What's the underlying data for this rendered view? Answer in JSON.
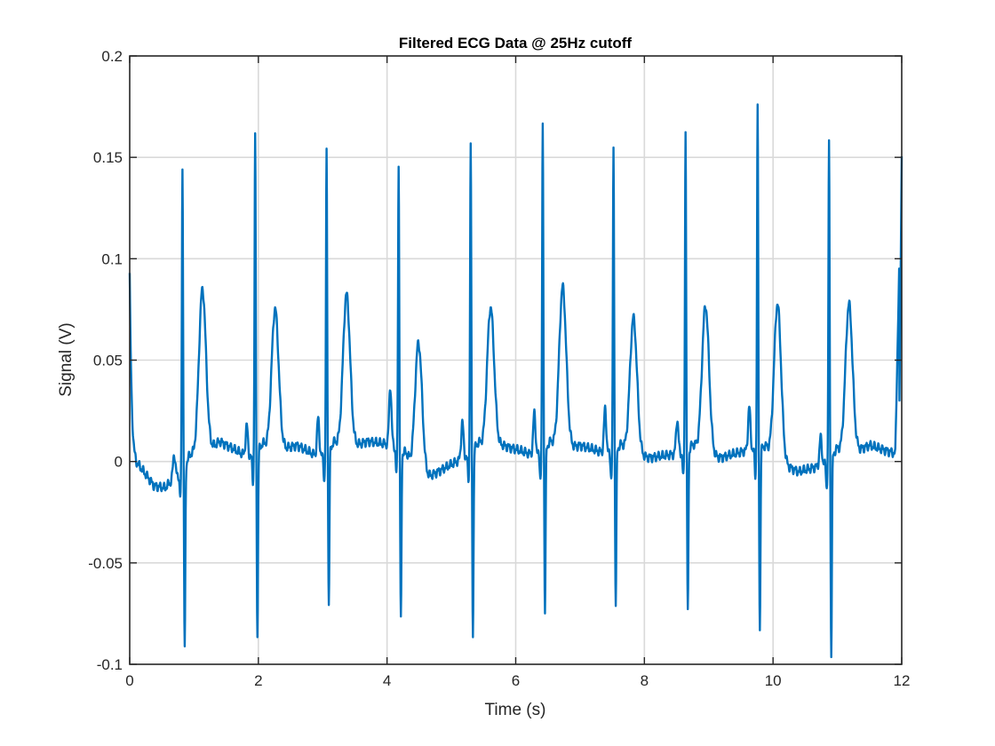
{
  "chart_data": {
    "type": "line",
    "title": "Filtered ECG Data @ 25Hz cutoff",
    "xlabel": "Time (s)",
    "ylabel": "Signal (V)",
    "xlim": [
      0,
      12
    ],
    "ylim": [
      -0.1,
      0.2
    ],
    "xticks": [
      0,
      2,
      4,
      6,
      8,
      10,
      12
    ],
    "xtick_labels": [
      "0",
      "2",
      "4",
      "6",
      "8",
      "10",
      "12"
    ],
    "yticks": [
      -0.1,
      -0.05,
      0,
      0.05,
      0.1,
      0.15,
      0.2
    ],
    "ytick_labels": [
      "-0.1",
      "-0.05",
      "0",
      "0.05",
      "0.1",
      "0.15",
      "0.2"
    ],
    "grid": true,
    "line_color": "#0072BD",
    "beats": [
      {
        "t": 0.82,
        "r": 0.161,
        "s": -0.085,
        "p": 0.016,
        "tw": 0.094
      },
      {
        "t": 1.95,
        "r": 0.168,
        "s": -0.085,
        "p": 0.019,
        "tw": 0.082
      },
      {
        "t": 3.06,
        "r": 0.159,
        "s": -0.07,
        "p": 0.023,
        "tw": 0.088
      },
      {
        "t": 4.18,
        "r": 0.152,
        "s": -0.078,
        "p": 0.033,
        "tw": 0.08
      },
      {
        "t": 5.3,
        "r": 0.164,
        "s": -0.085,
        "p": 0.022,
        "tw": 0.082
      },
      {
        "t": 6.42,
        "r": 0.172,
        "s": -0.074,
        "p": 0.025,
        "tw": 0.092
      },
      {
        "t": 7.52,
        "r": 0.161,
        "s": -0.07,
        "p": 0.026,
        "tw": 0.08
      },
      {
        "t": 8.64,
        "r": 0.169,
        "s": -0.074,
        "p": 0.021,
        "tw": 0.086
      },
      {
        "t": 9.76,
        "r": 0.18,
        "s": -0.083,
        "p": 0.025,
        "tw": 0.09
      },
      {
        "t": 10.87,
        "r": 0.167,
        "s": -0.091,
        "p": 0.018,
        "tw": 0.086
      }
    ],
    "baseline": [
      {
        "t": 0.0,
        "v": 0.092
      },
      {
        "t": 0.1,
        "v": 0.0
      },
      {
        "t": 0.38,
        "v": -0.012
      },
      {
        "t": 0.55,
        "v": -0.013
      },
      {
        "t": 0.7,
        "v": -0.008
      },
      {
        "t": 1.4,
        "v": 0.01
      },
      {
        "t": 1.85,
        "v": 0.002
      },
      {
        "t": 2.6,
        "v": 0.008
      },
      {
        "t": 2.95,
        "v": 0.002
      },
      {
        "t": 3.7,
        "v": 0.01
      },
      {
        "t": 4.1,
        "v": 0.008
      },
      {
        "t": 4.5,
        "v": -0.01
      },
      {
        "t": 5.2,
        "v": 0.002
      },
      {
        "t": 5.8,
        "v": 0.008
      },
      {
        "t": 6.3,
        "v": 0.003
      },
      {
        "t": 7.0,
        "v": 0.008
      },
      {
        "t": 7.4,
        "v": 0.004
      },
      {
        "t": 8.1,
        "v": 0.002
      },
      {
        "t": 8.55,
        "v": 0.004
      },
      {
        "t": 9.2,
        "v": 0.002
      },
      {
        "t": 9.65,
        "v": 0.006
      },
      {
        "t": 10.4,
        "v": -0.005
      },
      {
        "t": 10.75,
        "v": -0.002
      },
      {
        "t": 11.5,
        "v": 0.008
      },
      {
        "t": 11.9,
        "v": 0.004
      },
      {
        "t": 12.0,
        "v": 0.152
      }
    ]
  }
}
